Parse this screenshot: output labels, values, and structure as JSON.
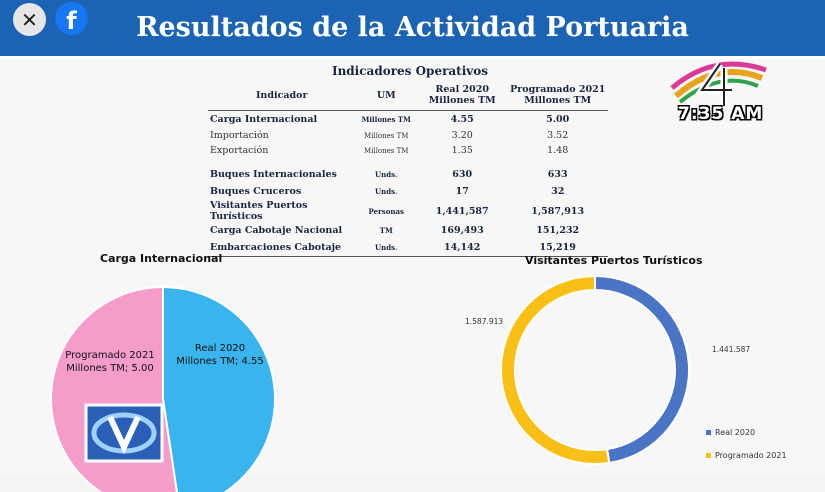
{
  "header": {
    "title": "Resultados de la Actividad Portuaria",
    "close_icon": "close-icon",
    "share_icon": "facebook-icon"
  },
  "clock": {
    "time": "7:35 AM"
  },
  "table": {
    "title": "Indicadores Operativos",
    "columns": [
      "Indicador",
      "UM",
      "Real 2020\nMillones TM",
      "Programado 2021\nMillones TM"
    ],
    "rows": [
      {
        "indicator": "Carga Internacional",
        "um": "Millones TM",
        "real": "4.55",
        "prog": "5.00",
        "bold": true
      },
      {
        "indicator": "Importación",
        "um": "Millones TM",
        "real": "3.20",
        "prog": "3.52",
        "bold": false
      },
      {
        "indicator": "Exportación",
        "um": "Millones TM",
        "real": "1.35",
        "prog": "1.48",
        "bold": false
      },
      {
        "indicator": "Buques Internacionales",
        "um": "Unds.",
        "real": "630",
        "prog": "633",
        "bold": true
      },
      {
        "indicator": "Buques Cruceros",
        "um": "Unds.",
        "real": "17",
        "prog": "32",
        "bold": true
      },
      {
        "indicator": "Visitantes Puertos Turísticos",
        "um": "Personas",
        "real": "1,441,587",
        "prog": "1,587,913",
        "bold": true
      },
      {
        "indicator": "Carga Cabotaje Nacional",
        "um": "TM",
        "real": "169,493",
        "prog": "151,232",
        "bold": true
      },
      {
        "indicator": "Embarcaciones Cabotaje",
        "um": "Unds.",
        "real": "14,142",
        "prog": "15,219",
        "bold": true
      }
    ]
  },
  "chart_data": [
    {
      "type": "pie",
      "title": "Carga Internacional",
      "series": [
        {
          "name": "Real 2020",
          "value": 4.55,
          "label": "Real 2020\nMillones TM; 4.55",
          "color": "#3ab4ec"
        },
        {
          "name": "Programado 2021",
          "value": 5.0,
          "label": "Programado 2021\nMillones TM; 5.00",
          "color": "#f59ccb"
        }
      ]
    },
    {
      "type": "pie",
      "title": "Visitantes Puertos Turísticos",
      "donut": true,
      "series": [
        {
          "name": "Real 2020",
          "value": 1441587,
          "label": "1.441.587",
          "color": "#4a74c4"
        },
        {
          "name": "Programado 2021",
          "value": 1587913,
          "label": "1.587.913",
          "color": "#f8c016"
        }
      ],
      "legend": "bottom-right"
    }
  ]
}
